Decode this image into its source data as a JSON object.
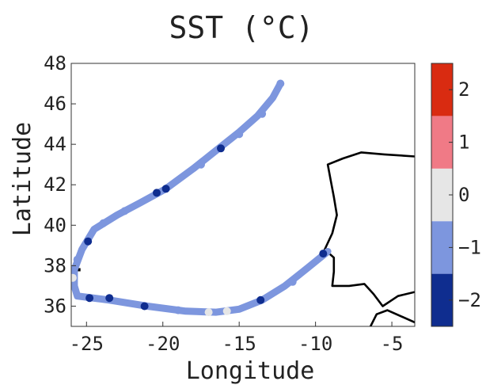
{
  "chart_data": {
    "type": "scatter",
    "title": "SST (°C)",
    "xlabel": "Longitude",
    "ylabel": "Latitude",
    "xlim": [
      -26,
      -3.5
    ],
    "ylim": [
      35,
      48
    ],
    "xticks": [
      -25,
      -20,
      -15,
      -10,
      -5
    ],
    "yticks": [
      36,
      38,
      40,
      42,
      44,
      46,
      48
    ],
    "grid": false,
    "colorbar": {
      "label_ticks": [
        2,
        1,
        0,
        -1,
        -2
      ],
      "bins": [
        {
          "min": -2.5,
          "max": -1.5,
          "color": "#0f2d8f"
        },
        {
          "min": -1.5,
          "max": -0.5,
          "color": "#7d96de"
        },
        {
          "min": -0.5,
          "max": 0.5,
          "color": "#e6e6e6"
        },
        {
          "min": 0.5,
          "max": 1.5,
          "color": "#f07a86"
        },
        {
          "min": 1.5,
          "max": 2.5,
          "color": "#d92b11"
        }
      ]
    },
    "colors": {
      "bin_m2": "#0f2d8f",
      "bin_m1": "#7d96de",
      "bin_0": "#e6e6e6",
      "bin_p1": "#f07a86",
      "bin_p2": "#d92b11",
      "coast": "#000000"
    },
    "track_waypoints": [
      {
        "lon": -12.3,
        "lat": 47.0
      },
      {
        "lon": -12.8,
        "lat": 46.3
      },
      {
        "lon": -13.8,
        "lat": 45.4
      },
      {
        "lon": -15.0,
        "lat": 44.6
      },
      {
        "lon": -16.5,
        "lat": 43.7
      },
      {
        "lon": -18.0,
        "lat": 42.8
      },
      {
        "lon": -19.8,
        "lat": 41.8
      },
      {
        "lon": -21.5,
        "lat": 41.1
      },
      {
        "lon": -23.0,
        "lat": 40.5
      },
      {
        "lon": -24.5,
        "lat": 39.8
      },
      {
        "lon": -25.3,
        "lat": 38.8
      },
      {
        "lon": -25.8,
        "lat": 37.8
      },
      {
        "lon": -25.8,
        "lat": 37.0
      },
      {
        "lon": -25.6,
        "lat": 36.5
      },
      {
        "lon": -23.5,
        "lat": 36.3
      },
      {
        "lon": -21.0,
        "lat": 36.0
      },
      {
        "lon": -18.5,
        "lat": 35.75
      },
      {
        "lon": -16.5,
        "lat": 35.7
      },
      {
        "lon": -15.0,
        "lat": 35.85
      },
      {
        "lon": -13.5,
        "lat": 36.3
      },
      {
        "lon": -12.0,
        "lat": 37.0
      },
      {
        "lon": -10.5,
        "lat": 37.9
      },
      {
        "lon": -9.2,
        "lat": 38.7
      }
    ],
    "track_anomaly_points": [
      {
        "lon": -12.3,
        "lat": 47.0,
        "sst": -1
      },
      {
        "lon": -13.5,
        "lat": 45.5,
        "sst": -1
      },
      {
        "lon": -15.0,
        "lat": 44.5,
        "sst": -1
      },
      {
        "lon": -16.2,
        "lat": 43.8,
        "sst": -2
      },
      {
        "lon": -17.5,
        "lat": 43.0,
        "sst": -1
      },
      {
        "lon": -19.8,
        "lat": 41.8,
        "sst": -2
      },
      {
        "lon": -20.4,
        "lat": 41.6,
        "sst": -2
      },
      {
        "lon": -22.5,
        "lat": 40.7,
        "sst": -1
      },
      {
        "lon": -23.9,
        "lat": 40.1,
        "sst": -1
      },
      {
        "lon": -24.9,
        "lat": 39.2,
        "sst": -2
      },
      {
        "lon": -25.6,
        "lat": 38.3,
        "sst": -1
      },
      {
        "lon": -25.9,
        "lat": 37.4,
        "sst": 0
      },
      {
        "lon": -24.8,
        "lat": 36.4,
        "sst": -2
      },
      {
        "lon": -23.5,
        "lat": 36.4,
        "sst": -2
      },
      {
        "lon": -21.2,
        "lat": 36.0,
        "sst": -2
      },
      {
        "lon": -19.0,
        "lat": 35.8,
        "sst": -1
      },
      {
        "lon": -17.0,
        "lat": 35.7,
        "sst": 0
      },
      {
        "lon": -15.8,
        "lat": 35.75,
        "sst": 0
      },
      {
        "lon": -13.6,
        "lat": 36.3,
        "sst": -2
      },
      {
        "lon": -11.5,
        "lat": 37.2,
        "sst": -1
      },
      {
        "lon": -9.5,
        "lat": 38.6,
        "sst": -2
      }
    ],
    "coastline": [
      {
        "lon": -3.5,
        "lat": 43.4
      },
      {
        "lon": -5.5,
        "lat": 43.5
      },
      {
        "lon": -7.0,
        "lat": 43.6
      },
      {
        "lon": -8.2,
        "lat": 43.3
      },
      {
        "lon": -9.2,
        "lat": 43.0
      },
      {
        "lon": -9.0,
        "lat": 42.2
      },
      {
        "lon": -8.8,
        "lat": 41.4
      },
      {
        "lon": -8.6,
        "lat": 40.5
      },
      {
        "lon": -8.9,
        "lat": 39.6
      },
      {
        "lon": -9.4,
        "lat": 38.8
      },
      {
        "lon": -8.8,
        "lat": 38.4
      },
      {
        "lon": -8.8,
        "lat": 37.7
      },
      {
        "lon": -8.9,
        "lat": 37.0
      },
      {
        "lon": -7.8,
        "lat": 37.0
      },
      {
        "lon": -6.8,
        "lat": 37.1
      },
      {
        "lon": -6.2,
        "lat": 36.6
      },
      {
        "lon": -5.6,
        "lat": 36.0
      },
      {
        "lon": -4.6,
        "lat": 36.5
      },
      {
        "lon": -3.5,
        "lat": 36.7
      }
    ],
    "africa_coast": [
      {
        "lon": -3.5,
        "lat": 35.2
      },
      {
        "lon": -5.3,
        "lat": 35.8
      },
      {
        "lon": -6.0,
        "lat": 35.6
      },
      {
        "lon": -6.4,
        "lat": 35.0
      }
    ],
    "island_marks": [
      {
        "lon": -25.6,
        "lat": 37.8
      }
    ]
  }
}
